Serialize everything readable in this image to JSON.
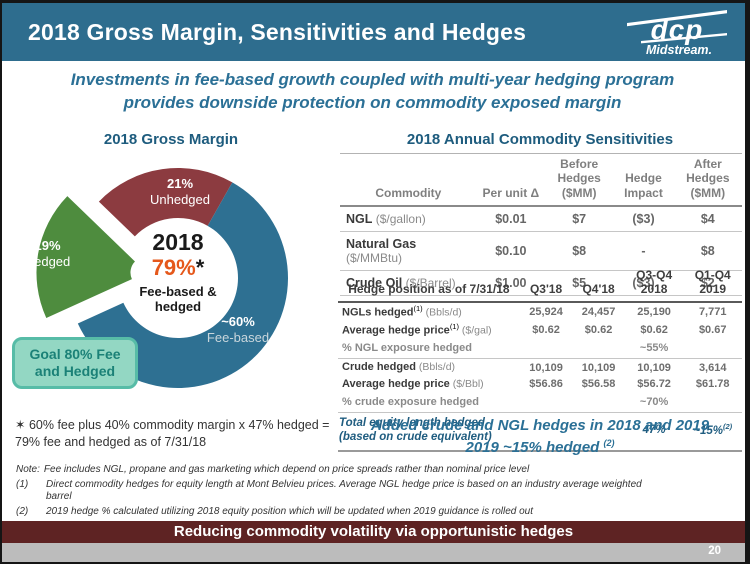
{
  "header": {
    "title": "2018 Gross Margin, Sensitivities and Hedges",
    "logo": {
      "brand": "dcp",
      "sub": "Midstream."
    }
  },
  "subtitle": "Investments in fee-based growth coupled with multi-year hedging program\nprovides downside protection on commodity exposed margin",
  "colors": {
    "header_bg": "#2E6D8E",
    "accent_teal": "#2B7096",
    "heading_teal": "#1E5C7E",
    "donut_blue": "#2E7092",
    "donut_red": "#8C3B40",
    "donut_green": "#4E8C3E",
    "orange": "#E5581B",
    "goal_bg": "#93D7C3",
    "goal_border": "#57BCA7",
    "goal_text": "#1B8177",
    "banner_maroon": "#5E2323",
    "strip_gray": "#BCBCBC"
  },
  "gross_margin": {
    "heading": "2018 Gross Margin",
    "center": {
      "year": "2018",
      "pct": "79%",
      "star": "*",
      "caption": "Fee-based &\nhedged"
    },
    "goal_box": "Goal 80% Fee\nand Hedged",
    "footnote": "✶ 60% fee plus 40% commodity margin x 47% hedged =\n79% fee and hedged as of 7/31/18"
  },
  "chart_data": {
    "type": "pie",
    "title": "2018 Gross Margin",
    "start_bearing_deg": 314,
    "inner_radius_pct": 55,
    "center_label": "2018 79%* Fee-based & hedged",
    "segments": [
      {
        "name": "Unhedged",
        "value_pct": 21,
        "pct_label": "21%",
        "color": "#8C3B40",
        "exploded": false
      },
      {
        "name": "Fee-based",
        "value_pct": 60,
        "pct_label": "~60%",
        "color": "#2E7092",
        "exploded": false
      },
      {
        "name": "Hedged",
        "value_pct": 19,
        "pct_label": "19%",
        "color": "#4E8C3E",
        "exploded": true
      }
    ]
  },
  "sensitivities": {
    "heading": "2018 Annual Commodity Sensitivities",
    "columns": [
      "Commodity",
      "Per unit Δ",
      "Before\nHedges\n($MM)",
      "Hedge\nImpact",
      "After\nHedges\n($MM)"
    ],
    "rows": [
      {
        "name": "NGL",
        "unit": "($/gallon)",
        "values": [
          "$0.01",
          "$7",
          "($3)",
          "$4"
        ]
      },
      {
        "name": "Natural Gas",
        "unit": "($/MMBtu)",
        "values": [
          "$0.10",
          "$8",
          "-",
          "$8"
        ]
      },
      {
        "name": "Crude Oil",
        "unit": "($/Barrel)",
        "values": [
          "$1.00",
          "$5",
          "($3)",
          "$2"
        ]
      }
    ]
  },
  "hedge_position": {
    "header_label": "Hedge position as of 7/31/18",
    "columns": [
      "Q3'18",
      "Q4'18",
      "Q3-Q4\n2018",
      "Q1-Q4\n2019"
    ],
    "rows": [
      {
        "label": "NGLs hedged",
        "sup": "(1)",
        "unit": "(Bbls/d)",
        "values": [
          "25,924",
          "24,457",
          "25,190",
          "7,771"
        ],
        "style": "normal"
      },
      {
        "label": "Average hedge price",
        "sup": "(1)",
        "unit": "($/gal)",
        "values": [
          "$0.62",
          "$0.62",
          "$0.62",
          "$0.67"
        ],
        "style": "normal"
      },
      {
        "label": "% NGL exposure hedged",
        "sup": "",
        "unit": "",
        "values": [
          "",
          "",
          "~55%",
          ""
        ],
        "style": "muted"
      },
      {
        "label": "Crude hedged",
        "sup": "",
        "unit": "(Bbls/d)",
        "values": [
          "10,109",
          "10,109",
          "10,109",
          "3,614"
        ],
        "style": "normal"
      },
      {
        "label": "Average hedge price",
        "sup": "",
        "unit": "($/Bbl)",
        "values": [
          "$56.86",
          "$56.58",
          "$56.72",
          "$61.78"
        ],
        "style": "normal"
      },
      {
        "label": "% crude exposure hedged",
        "sup": "",
        "unit": "",
        "values": [
          "",
          "",
          "~70%",
          ""
        ],
        "style": "muted"
      },
      {
        "label": "Total equity length hedged\n(based on crude equivalent)",
        "sup": "",
        "unit": "",
        "values": [
          "",
          "",
          "47%",
          "~15%"
        ],
        "style": "total",
        "value_sup": "(2)",
        "value_sup_col": 3
      }
    ],
    "message_line1": "Added crude and NGL hedges in 2018 and 2019",
    "message_line2": "2019 ~15% hedged",
    "message_sup": "(2)"
  },
  "notes": [
    {
      "prefix": "Note:",
      "inline": true,
      "text": "Fee includes NGL, propane and gas marketing which depend on price spreads rather than nominal price level"
    },
    {
      "prefix": "(1)",
      "inline": false,
      "text": "Direct commodity hedges for equity length at Mont Belvieu prices. Average NGL hedge price is based on an industry average weighted barrel"
    },
    {
      "prefix": "(2)",
      "inline": false,
      "text": "2019 hedge % calculated utilizing 2018 equity position which will be updated when 2019 guidance is rolled out"
    }
  ],
  "footer": {
    "banner": "Reducing commodity volatility via opportunistic hedges",
    "page_number": "20"
  }
}
